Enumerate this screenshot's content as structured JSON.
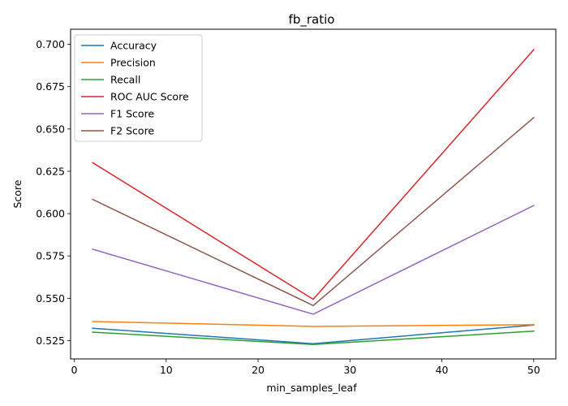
{
  "chart_data": {
    "type": "line",
    "title": "fb_ratio",
    "xlabel": "min_samples_leaf",
    "ylabel": "Score",
    "x": [
      2,
      26,
      50
    ],
    "xlim": [
      -0.4,
      52.4
    ],
    "ylim": [
      0.5142,
      0.7089
    ],
    "xticks": [
      0,
      10,
      20,
      30,
      40,
      50
    ],
    "yticks": [
      0.525,
      0.55,
      0.575,
      0.6,
      0.625,
      0.65,
      0.675,
      0.7
    ],
    "ytick_labels": [
      "0.525",
      "0.550",
      "0.575",
      "0.600",
      "0.625",
      "0.650",
      "0.675",
      "0.700"
    ],
    "grid": false,
    "legend_position": "top-left",
    "series": [
      {
        "name": "Accuracy",
        "color": "#1f77b4",
        "values": [
          0.5323,
          0.5232,
          0.5342
        ]
      },
      {
        "name": "Precision",
        "color": "#ff7f0e",
        "values": [
          0.5363,
          0.5334,
          0.5344
        ]
      },
      {
        "name": "Recall",
        "color": "#2ca02c",
        "values": [
          0.53,
          0.5227,
          0.5306
        ]
      },
      {
        "name": "ROC AUC Score",
        "color": "#d62728",
        "values": [
          0.6301,
          0.5494,
          0.6968
        ]
      },
      {
        "name": "F1 Score",
        "color": "#9467bd",
        "values": [
          0.579,
          0.5406,
          0.6048
        ]
      },
      {
        "name": "F2 Score",
        "color": "#8c564b",
        "values": [
          0.6084,
          0.5457,
          0.6567
        ]
      }
    ]
  }
}
